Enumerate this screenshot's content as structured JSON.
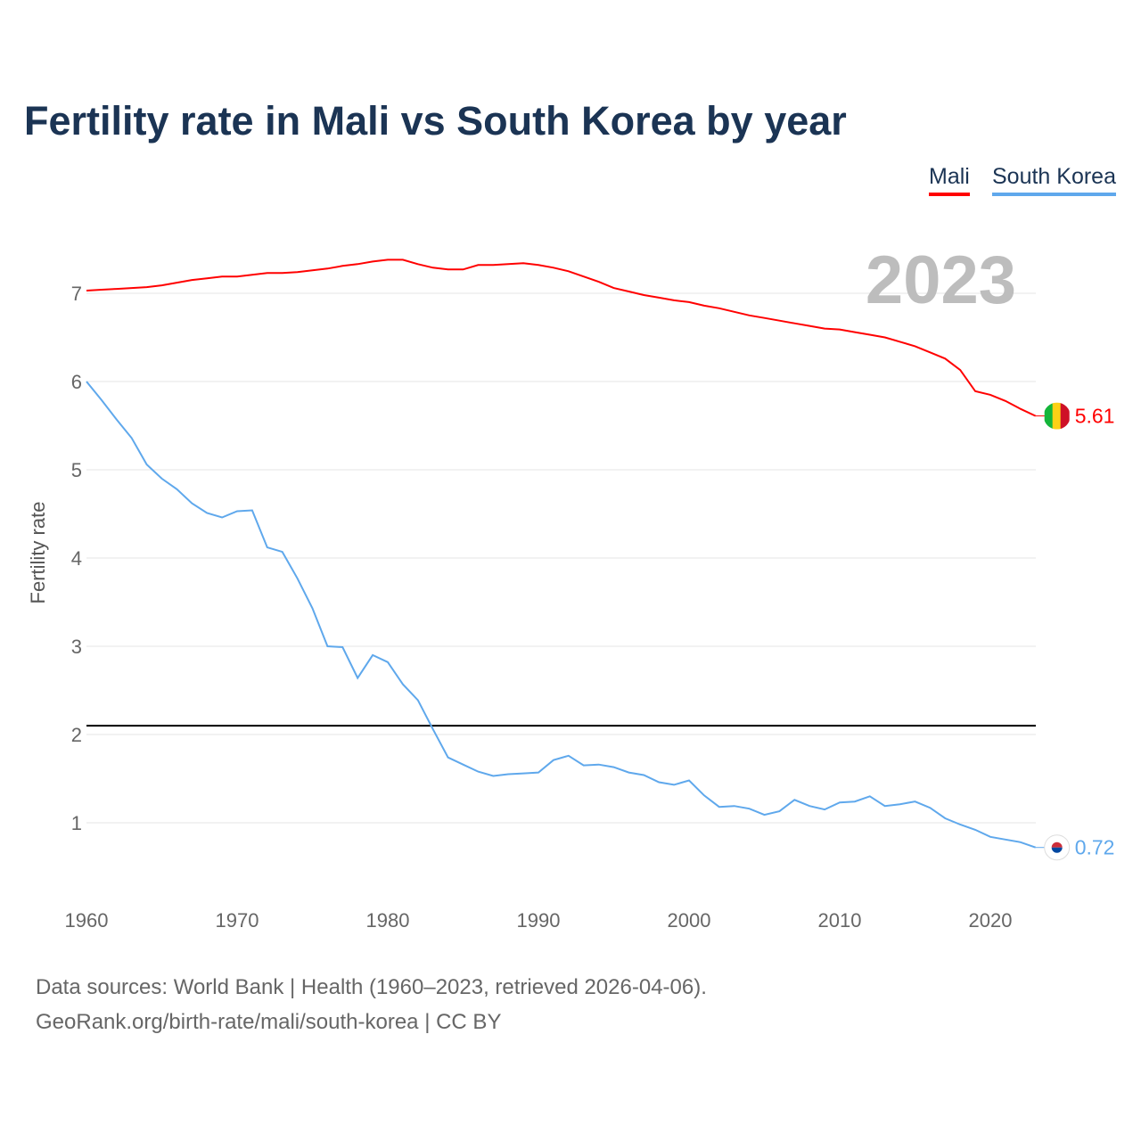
{
  "chart_data": {
    "type": "line",
    "title": "Fertility rate in Mali vs South Korea by year",
    "xlabel": "",
    "ylabel": "Fertility rate",
    "xlim": [
      1960,
      2023
    ],
    "ylim": [
      0,
      7.6
    ],
    "x_ticks": [
      1960,
      1970,
      1980,
      1990,
      2000,
      2010,
      2020
    ],
    "y_ticks": [
      1,
      2,
      3,
      4,
      5,
      6,
      7
    ],
    "grid": true,
    "legend_position": "top-right",
    "year_label": "2023",
    "reference_line": 2.1,
    "x": [
      1960,
      1961,
      1962,
      1963,
      1964,
      1965,
      1966,
      1967,
      1968,
      1969,
      1970,
      1971,
      1972,
      1973,
      1974,
      1975,
      1976,
      1977,
      1978,
      1979,
      1980,
      1981,
      1982,
      1983,
      1984,
      1985,
      1986,
      1987,
      1988,
      1989,
      1990,
      1991,
      1992,
      1993,
      1994,
      1995,
      1996,
      1997,
      1998,
      1999,
      2000,
      2001,
      2002,
      2003,
      2004,
      2005,
      2006,
      2007,
      2008,
      2009,
      2010,
      2011,
      2012,
      2013,
      2014,
      2015,
      2016,
      2017,
      2018,
      2019,
      2020,
      2021,
      2022,
      2023
    ],
    "series": [
      {
        "name": "Mali",
        "color": "#ff0000",
        "end_label": "5.61",
        "values": [
          7.03,
          7.04,
          7.05,
          7.06,
          7.07,
          7.09,
          7.12,
          7.15,
          7.17,
          7.19,
          7.19,
          7.21,
          7.23,
          7.23,
          7.24,
          7.26,
          7.28,
          7.31,
          7.33,
          7.36,
          7.38,
          7.38,
          7.33,
          7.29,
          7.27,
          7.27,
          7.32,
          7.32,
          7.33,
          7.34,
          7.32,
          7.29,
          7.25,
          7.19,
          7.13,
          7.06,
          7.02,
          6.98,
          6.95,
          6.92,
          6.9,
          6.86,
          6.83,
          6.79,
          6.75,
          6.72,
          6.69,
          6.66,
          6.63,
          6.6,
          6.59,
          6.56,
          6.53,
          6.5,
          6.45,
          6.4,
          6.33,
          6.26,
          6.13,
          5.89,
          5.85,
          5.78,
          5.69,
          5.61
        ]
      },
      {
        "name": "South Korea",
        "color": "#5fa8ec",
        "end_label": "0.72",
        "values": [
          6.0,
          5.79,
          5.57,
          5.36,
          5.06,
          4.9,
          4.78,
          4.62,
          4.51,
          4.46,
          4.53,
          4.54,
          4.12,
          4.07,
          3.77,
          3.43,
          3.0,
          2.99,
          2.64,
          2.9,
          2.82,
          2.57,
          2.39,
          2.06,
          1.74,
          1.66,
          1.58,
          1.53,
          1.55,
          1.56,
          1.57,
          1.71,
          1.76,
          1.65,
          1.66,
          1.63,
          1.57,
          1.54,
          1.46,
          1.43,
          1.48,
          1.31,
          1.18,
          1.19,
          1.16,
          1.09,
          1.13,
          1.26,
          1.19,
          1.15,
          1.23,
          1.24,
          1.3,
          1.19,
          1.21,
          1.24,
          1.17,
          1.05,
          0.98,
          0.92,
          0.84,
          0.81,
          0.78,
          0.72
        ]
      }
    ]
  },
  "footer": {
    "line1": "Data sources: World Bank | Health (1960–2023, retrieved 2026-04-06).",
    "line2": "GeoRank.org/birth-rate/mali/south-korea | CC BY"
  }
}
